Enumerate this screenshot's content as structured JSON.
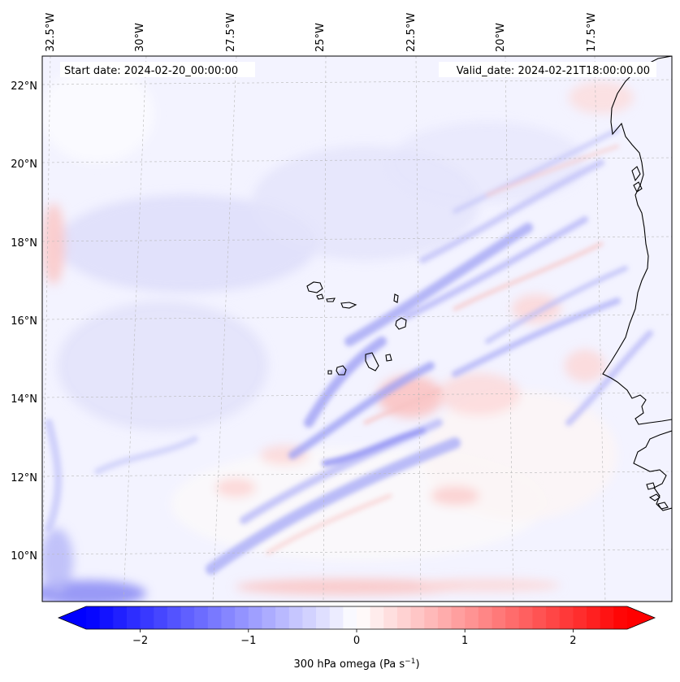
{
  "map": {
    "start_label": "Start date: 2024-02-20_00:00:00",
    "valid_label": "Valid_date: 2024-02-21T18:00:00.00",
    "lon_ticks": [
      "32.5°W",
      "30°W",
      "27.5°W",
      "25°W",
      "22.5°W",
      "20°W",
      "17.5°W"
    ],
    "lat_ticks": [
      "22°N",
      "20°N",
      "18°N",
      "16°N",
      "14°N",
      "12°N",
      "10°N"
    ],
    "field": "300 hPa omega",
    "colorbar": {
      "label": "300 hPa omega (Pa s",
      "label_sup": "−1",
      "label_end": ")",
      "min": -2.5,
      "max": 2.5,
      "ticks": [
        {
          "value": -2,
          "label": "−2"
        },
        {
          "value": -1,
          "label": "−1"
        },
        {
          "value": 0,
          "label": "0"
        },
        {
          "value": 1,
          "label": "1"
        },
        {
          "value": 2,
          "label": "2"
        }
      ],
      "low_color": "#0000ff",
      "mid_color": "#ffffff",
      "high_color": "#ff0000"
    }
  }
}
